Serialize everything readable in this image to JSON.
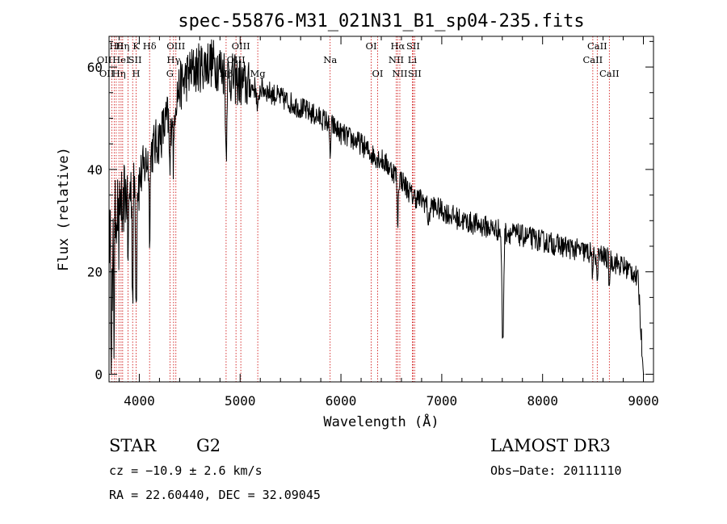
{
  "chart_data": {
    "type": "line",
    "title": "spec-55876-M31_021N31_B1_sp04-235.fits",
    "xlabel": "Wavelength (Å)",
    "ylabel": "Flux (relative)",
    "xlim": [
      3700,
      9100
    ],
    "ylim": [
      -1.5,
      66
    ],
    "x_ticks": [
      4000,
      5000,
      6000,
      7000,
      8000,
      9000
    ],
    "y_ticks": [
      0,
      20,
      40,
      60
    ],
    "x_tick_labels": [
      "4000",
      "5000",
      "6000",
      "7000",
      "8000",
      "9000"
    ],
    "y_tick_labels": [
      "0",
      "20",
      "40",
      "60"
    ],
    "line_color": "#000000",
    "marker_color": "#cc0000",
    "continuum": [
      [
        3700,
        27
      ],
      [
        3800,
        34
      ],
      [
        3900,
        36
      ],
      [
        4000,
        38
      ],
      [
        4100,
        43
      ],
      [
        4200,
        46
      ],
      [
        4300,
        51
      ],
      [
        4400,
        56
      ],
      [
        4500,
        59
      ],
      [
        4600,
        60
      ],
      [
        4700,
        61
      ],
      [
        4800,
        60
      ],
      [
        4900,
        58
      ],
      [
        5000,
        57
      ],
      [
        5100,
        56
      ],
      [
        5200,
        56
      ],
      [
        5300,
        55
      ],
      [
        5400,
        54
      ],
      [
        5500,
        53
      ],
      [
        5600,
        52
      ],
      [
        5700,
        51
      ],
      [
        5800,
        50
      ],
      [
        5900,
        49
      ],
      [
        6000,
        47
      ],
      [
        6100,
        46
      ],
      [
        6200,
        45
      ],
      [
        6300,
        43
      ],
      [
        6400,
        42
      ],
      [
        6500,
        40
      ],
      [
        6600,
        38
      ],
      [
        6700,
        35
      ],
      [
        6800,
        34
      ],
      [
        6900,
        33
      ],
      [
        7000,
        32
      ],
      [
        7200,
        30
      ],
      [
        7400,
        29
      ],
      [
        7600,
        28
      ],
      [
        7800,
        27
      ],
      [
        8000,
        26
      ],
      [
        8200,
        25
      ],
      [
        8400,
        24
      ],
      [
        8600,
        23
      ],
      [
        8800,
        21
      ],
      [
        8900,
        20
      ],
      [
        8950,
        18
      ],
      [
        9000,
        0
      ]
    ],
    "dips": [
      {
        "x": 3722,
        "w": 6,
        "d": 22
      },
      {
        "x": 3734,
        "w": 5,
        "d": 18
      },
      {
        "x": 3750,
        "w": 5,
        "d": 24
      },
      {
        "x": 3798,
        "w": 6,
        "d": 10
      },
      {
        "x": 3835,
        "w": 6,
        "d": 12
      },
      {
        "x": 3889,
        "w": 7,
        "d": 14
      },
      {
        "x": 3934,
        "w": 7,
        "d": 22
      },
      {
        "x": 3969,
        "w": 7,
        "d": 24
      },
      {
        "x": 4102,
        "w": 8,
        "d": 14
      },
      {
        "x": 4304,
        "w": 10,
        "d": 12
      },
      {
        "x": 4340,
        "w": 8,
        "d": 12
      },
      {
        "x": 4861,
        "w": 8,
        "d": 16
      },
      {
        "x": 5175,
        "w": 12,
        "d": 5
      },
      {
        "x": 5893,
        "w": 10,
        "d": 6
      },
      {
        "x": 6563,
        "w": 8,
        "d": 9
      },
      {
        "x": 6870,
        "w": 12,
        "d": 4
      },
      {
        "x": 7605,
        "w": 12,
        "d": 22
      },
      {
        "x": 8498,
        "w": 6,
        "d": 6
      },
      {
        "x": 8542,
        "w": 6,
        "d": 7
      },
      {
        "x": 8662,
        "w": 6,
        "d": 6
      }
    ],
    "line_markers": [
      {
        "x": 3727,
        "label": "OII",
        "row": 2,
        "align": "right"
      },
      {
        "x": 3751,
        "label": "OII",
        "row": 3,
        "align": "right"
      },
      {
        "x": 3771,
        "label": "Hθ",
        "row": 1,
        "align": "middle"
      },
      {
        "x": 3798,
        "label": "Hη",
        "row": 3,
        "align": "middle"
      },
      {
        "x": 3819,
        "label": "HeI",
        "row": 2,
        "align": "middle"
      },
      {
        "x": 3835,
        "label": "Hη",
        "row": 1,
        "align": "middle"
      },
      {
        "x": 3889,
        "label": "SII",
        "row": 2,
        "align": "left"
      },
      {
        "x": 3934,
        "label": "K",
        "row": 1,
        "align": "left"
      },
      {
        "x": 3969,
        "label": "H",
        "row": 3,
        "align": "middle"
      },
      {
        "x": 4102,
        "label": "Hδ",
        "row": 1,
        "align": "middle"
      },
      {
        "x": 4304,
        "label": "G",
        "row": 3,
        "align": "middle"
      },
      {
        "x": 4340,
        "label": "Hγ",
        "row": 2,
        "align": "middle"
      },
      {
        "x": 4363,
        "label": "OIII",
        "row": 1,
        "align": "middle"
      },
      {
        "x": 4861,
        "label": "Hβ",
        "row": 3,
        "align": "middle"
      },
      {
        "x": 4959,
        "label": "OIII",
        "row": 2,
        "align": "middle"
      },
      {
        "x": 5007,
        "label": "OIII",
        "row": 1,
        "align": "middle"
      },
      {
        "x": 5175,
        "label": "Mg",
        "row": 3,
        "align": "middle"
      },
      {
        "x": 5893,
        "label": "Na",
        "row": 2,
        "align": "middle"
      },
      {
        "x": 6300,
        "label": "OI",
        "row": 1,
        "align": "middle"
      },
      {
        "x": 6364,
        "label": "OI",
        "row": 3,
        "align": "middle"
      },
      {
        "x": 6548,
        "label": "NII",
        "row": 2,
        "align": "middle"
      },
      {
        "x": 6563,
        "label": "Hα",
        "row": 1,
        "align": "middle"
      },
      {
        "x": 6584,
        "label": "NII",
        "row": 3,
        "align": "middle"
      },
      {
        "x": 6708,
        "label": "Li",
        "row": 2,
        "align": "middle"
      },
      {
        "x": 6716,
        "label": "SII",
        "row": 1,
        "align": "middle"
      },
      {
        "x": 6731,
        "label": "SII",
        "row": 3,
        "align": "middle"
      },
      {
        "x": 8498,
        "label": "CaII",
        "row": 2,
        "align": "middle"
      },
      {
        "x": 8542,
        "label": "CaII",
        "row": 1,
        "align": "middle"
      },
      {
        "x": 8662,
        "label": "CaII",
        "row": 3,
        "align": "middle"
      }
    ]
  },
  "info": {
    "object_class": "STAR",
    "subclass": "G2",
    "survey": "LAMOST DR3",
    "redshift_text": "cz = −10.9 ± 2.6 km/s",
    "obs_date_text": "Obs−Date: 20111110",
    "coords_text": "RA =  22.60440, DEC =  32.09045"
  }
}
